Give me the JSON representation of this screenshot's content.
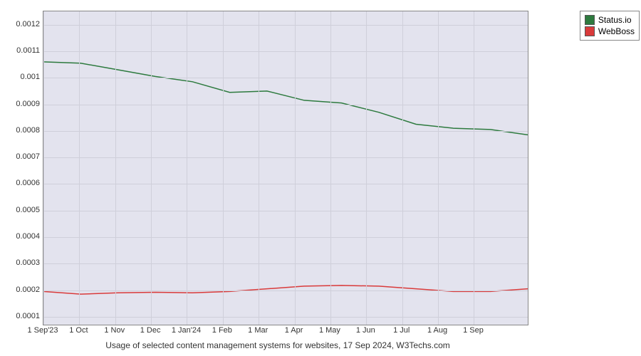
{
  "chart": {
    "type": "line",
    "background_color": "#e3e3ee",
    "grid_color": "#cfcfda",
    "border_color": "#888888",
    "caption": "Usage of selected content management systems for websites, 17 Sep 2024, W3Techs.com",
    "caption_fontsize": 12,
    "label_fontsize": 11,
    "y_ticks": [
      0.0001,
      0.0002,
      0.0003,
      0.0004,
      0.0005,
      0.0006,
      0.0007,
      0.0008,
      0.0009,
      0.001,
      0.0011,
      0.0012
    ],
    "y_tick_labels": [
      "0.0001",
      "0.0002",
      "0.0003",
      "0.0004",
      "0.0005",
      "0.0006",
      "0.0007",
      "0.0008",
      "0.0009",
      "0.001",
      "0.0011",
      "0.0012"
    ],
    "ylim": [
      7e-05,
      0.00125
    ],
    "x_tick_labels": [
      "1 Sep'23",
      "1 Oct",
      "1 Nov",
      "1 Dec",
      "1 Jan'24",
      "1 Feb",
      "1 Mar",
      "1 Apr",
      "1 May",
      "1 Jun",
      "1 Jul",
      "1 Aug",
      "1 Sep"
    ],
    "x_count": 13,
    "series": [
      {
        "name": "Status.io",
        "color": "#2d7a3e",
        "line_width": 1.5,
        "values": [
          0.00106,
          0.001055,
          0.00103,
          0.001005,
          0.000985,
          0.000945,
          0.00095,
          0.000915,
          0.000905,
          0.00087,
          0.000825,
          0.00081,
          0.000805,
          0.000785
        ]
      },
      {
        "name": "WebBoss",
        "color": "#d93a3a",
        "line_width": 1.5,
        "values": [
          0.000195,
          0.000185,
          0.00019,
          0.000192,
          0.00019,
          0.000195,
          0.000205,
          0.000215,
          0.000218,
          0.000215,
          0.000205,
          0.000195,
          0.000195,
          0.000205
        ]
      }
    ],
    "legend": {
      "items": [
        "Status.io",
        "WebBoss"
      ],
      "colors": [
        "#2d7a3e",
        "#d93a3a"
      ]
    }
  }
}
